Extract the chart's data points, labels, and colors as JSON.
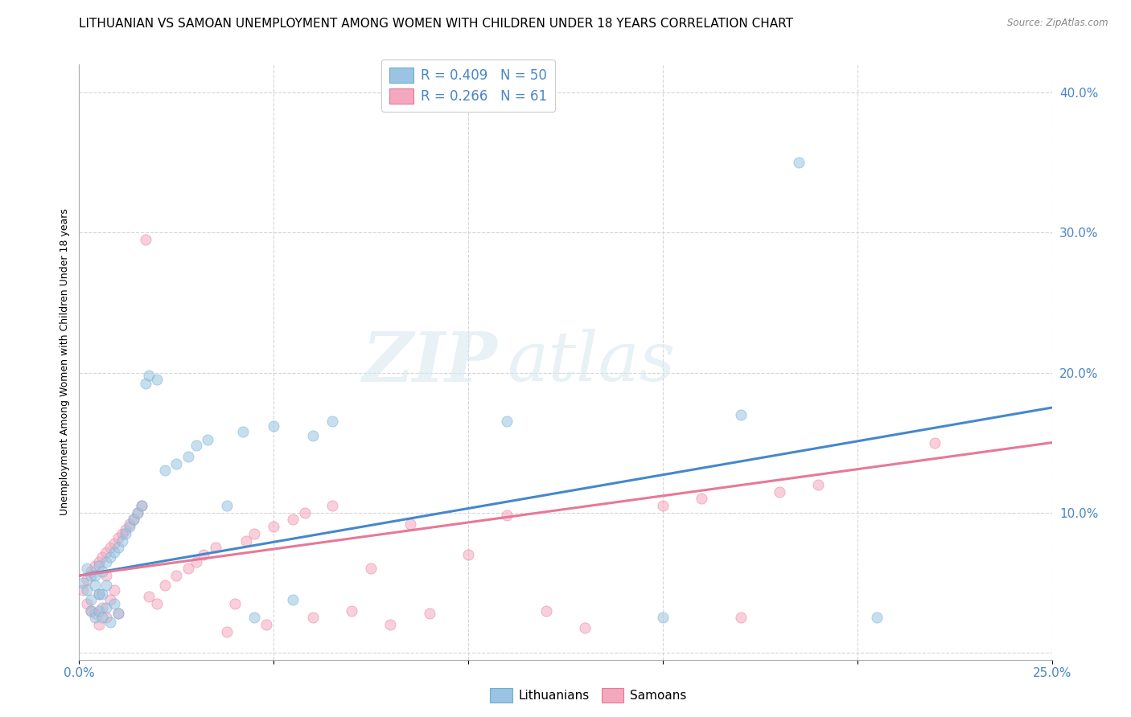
{
  "title": "LITHUANIAN VS SAMOAN UNEMPLOYMENT AMONG WOMEN WITH CHILDREN UNDER 18 YEARS CORRELATION CHART",
  "source": "Source: ZipAtlas.com",
  "ylabel": "Unemployment Among Women with Children Under 18 years",
  "xlim": [
    0.0,
    0.25
  ],
  "ylim": [
    -0.005,
    0.42
  ],
  "xticks": [
    0.0,
    0.05,
    0.1,
    0.15,
    0.2,
    0.25
  ],
  "yticks": [
    0.0,
    0.1,
    0.2,
    0.3,
    0.4
  ],
  "xtick_labels": [
    "0.0%",
    "",
    "",
    "",
    "",
    "25.0%"
  ],
  "ytick_right_labels": [
    "",
    "10.0%",
    "20.0%",
    "30.0%",
    "40.0%"
  ],
  "legend_items": [
    {
      "label": "R = 0.409   N = 50",
      "color": "#a8c8e8"
    },
    {
      "label": "R = 0.266   N = 61",
      "color": "#f4b8c8"
    }
  ],
  "legend_bottom_items": [
    {
      "label": "Lithuanians",
      "color": "#a8c8e8"
    },
    {
      "label": "Samoans",
      "color": "#f4b8c8"
    }
  ],
  "watermark_zip": "ZIP",
  "watermark_atlas": "atlas",
  "blue_scatter_x": [
    0.001,
    0.002,
    0.002,
    0.003,
    0.003,
    0.003,
    0.004,
    0.004,
    0.004,
    0.005,
    0.005,
    0.005,
    0.006,
    0.006,
    0.006,
    0.007,
    0.007,
    0.007,
    0.008,
    0.008,
    0.009,
    0.009,
    0.01,
    0.01,
    0.011,
    0.012,
    0.013,
    0.014,
    0.015,
    0.016,
    0.017,
    0.018,
    0.02,
    0.022,
    0.025,
    0.028,
    0.03,
    0.033,
    0.038,
    0.042,
    0.045,
    0.05,
    0.055,
    0.06,
    0.065,
    0.11,
    0.15,
    0.17,
    0.185,
    0.205
  ],
  "blue_scatter_y": [
    0.05,
    0.06,
    0.045,
    0.055,
    0.038,
    0.03,
    0.048,
    0.055,
    0.025,
    0.062,
    0.042,
    0.03,
    0.058,
    0.042,
    0.025,
    0.065,
    0.048,
    0.032,
    0.068,
    0.022,
    0.072,
    0.035,
    0.075,
    0.028,
    0.08,
    0.085,
    0.09,
    0.095,
    0.1,
    0.105,
    0.192,
    0.198,
    0.195,
    0.13,
    0.135,
    0.14,
    0.148,
    0.152,
    0.105,
    0.158,
    0.025,
    0.162,
    0.038,
    0.155,
    0.165,
    0.165,
    0.025,
    0.17,
    0.35,
    0.025
  ],
  "pink_scatter_x": [
    0.001,
    0.002,
    0.002,
    0.003,
    0.003,
    0.004,
    0.004,
    0.005,
    0.005,
    0.005,
    0.006,
    0.006,
    0.007,
    0.007,
    0.007,
    0.008,
    0.008,
    0.009,
    0.009,
    0.01,
    0.01,
    0.011,
    0.012,
    0.013,
    0.014,
    0.015,
    0.016,
    0.017,
    0.018,
    0.02,
    0.022,
    0.025,
    0.028,
    0.03,
    0.032,
    0.035,
    0.038,
    0.04,
    0.043,
    0.045,
    0.048,
    0.05,
    0.055,
    0.058,
    0.06,
    0.065,
    0.07,
    0.075,
    0.08,
    0.085,
    0.09,
    0.1,
    0.11,
    0.12,
    0.13,
    0.15,
    0.16,
    0.17,
    0.18,
    0.19,
    0.22
  ],
  "pink_scatter_y": [
    0.045,
    0.052,
    0.035,
    0.058,
    0.03,
    0.062,
    0.028,
    0.065,
    0.042,
    0.02,
    0.068,
    0.032,
    0.072,
    0.055,
    0.025,
    0.075,
    0.038,
    0.078,
    0.045,
    0.082,
    0.028,
    0.085,
    0.088,
    0.092,
    0.095,
    0.1,
    0.105,
    0.295,
    0.04,
    0.035,
    0.048,
    0.055,
    0.06,
    0.065,
    0.07,
    0.075,
    0.015,
    0.035,
    0.08,
    0.085,
    0.02,
    0.09,
    0.095,
    0.1,
    0.025,
    0.105,
    0.03,
    0.06,
    0.02,
    0.092,
    0.028,
    0.07,
    0.098,
    0.03,
    0.018,
    0.105,
    0.11,
    0.025,
    0.115,
    0.12,
    0.15
  ],
  "blue_line_x": [
    0.0,
    0.25
  ],
  "blue_line_y": [
    0.055,
    0.175
  ],
  "pink_line_x": [
    0.0,
    0.25
  ],
  "pink_line_y": [
    0.055,
    0.15
  ],
  "scatter_size": 90,
  "scatter_alpha": 0.55,
  "blue_color": "#9ac4e0",
  "pink_color": "#f4a8be",
  "blue_edge_color": "#6aaed6",
  "pink_edge_color": "#e87898",
  "blue_line_color": "#4488cc",
  "pink_line_color": "#e87898",
  "grid_color": "#cccccc",
  "title_fontsize": 11,
  "axis_label_fontsize": 9,
  "tick_fontsize": 11,
  "tick_color": "#4a86c8",
  "background_color": "#ffffff"
}
